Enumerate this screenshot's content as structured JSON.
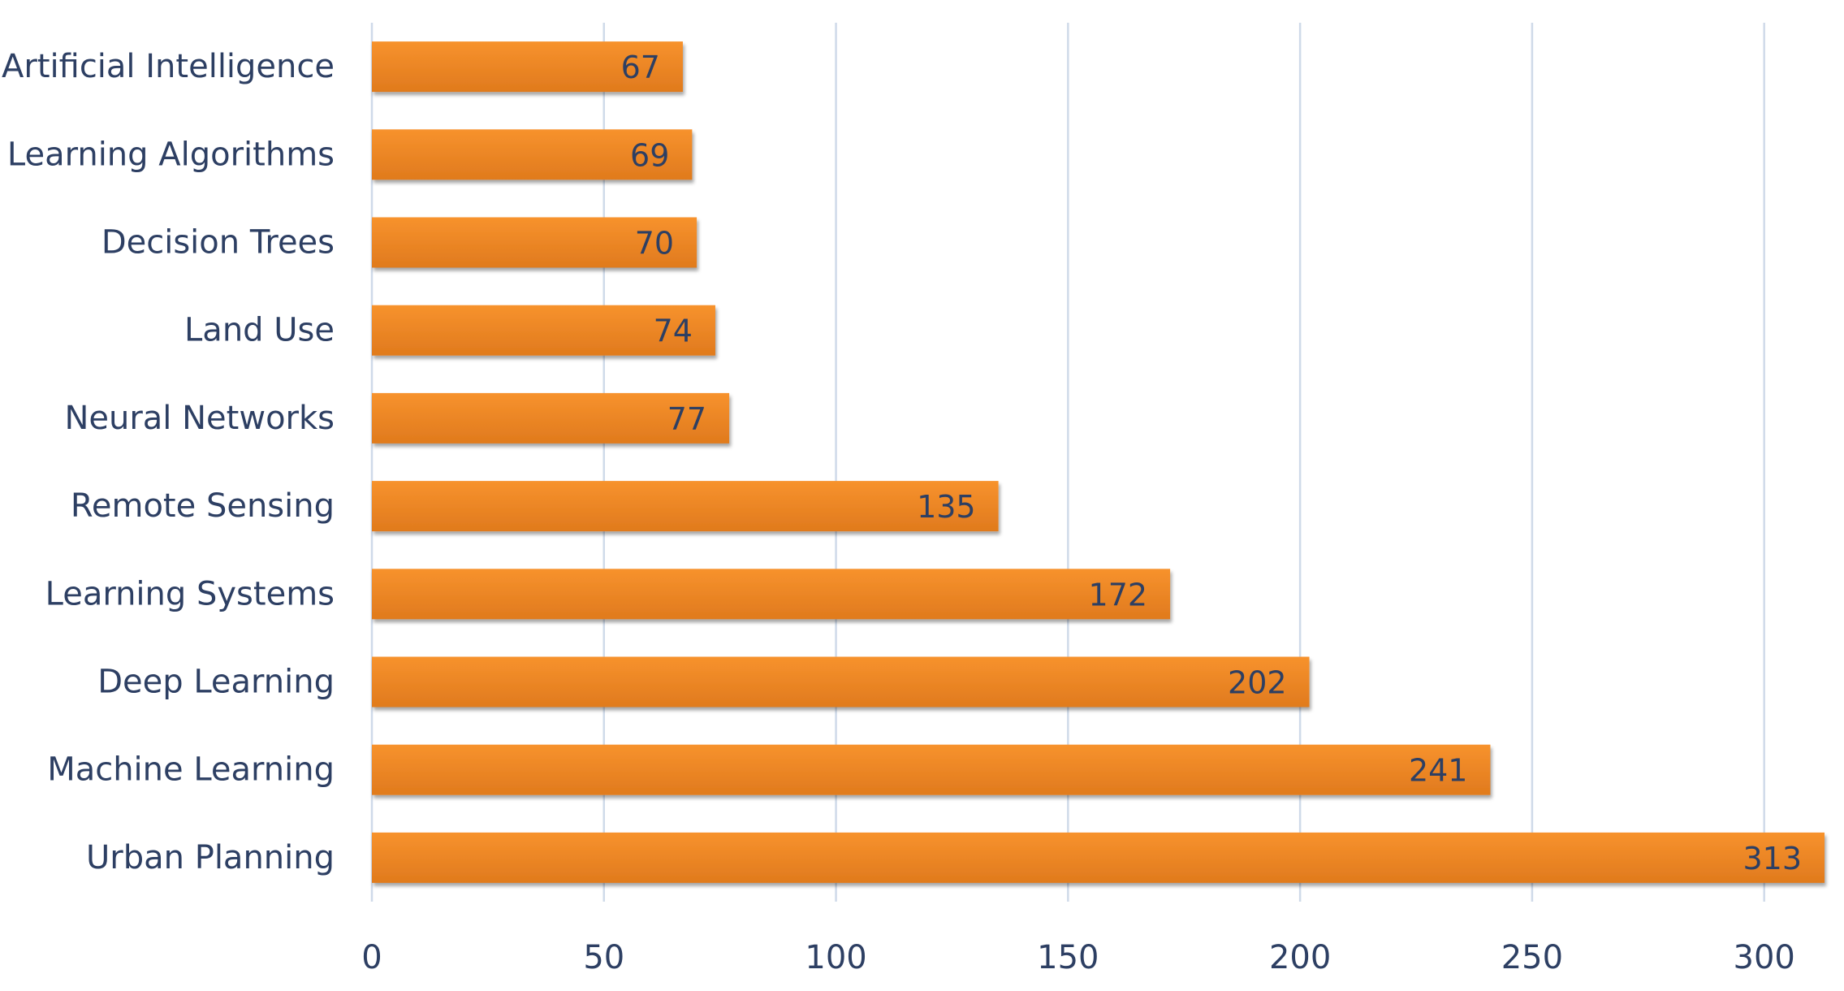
{
  "chart_data": {
    "type": "bar",
    "orientation": "horizontal",
    "categories": [
      "Artificial Intelligence",
      "Learning Algorithms",
      "Decision Trees",
      "Land Use",
      "Neural Networks",
      "Remote Sensing",
      "Learning Systems",
      "Deep Learning",
      "Machine Learning",
      "Urban Planning"
    ],
    "values": [
      67,
      69,
      70,
      74,
      77,
      135,
      172,
      202,
      241,
      313
    ],
    "data_labels": [
      "67",
      "69",
      "70",
      "74",
      "77",
      "135",
      "172",
      "202",
      "241",
      "313"
    ],
    "x_ticks": [
      "0",
      "50",
      "100",
      "150",
      "200",
      "250",
      "300"
    ],
    "xlim": [
      0,
      313
    ],
    "grid": "vertical",
    "legend": "none",
    "title": "",
    "xlabel": "",
    "ylabel": "",
    "colors": {
      "bar_fill_top": "#f7922d",
      "bar_fill_bottom": "#e07a1d",
      "bar_shadow": "#9f9f9f",
      "text": "#2d3f63",
      "grid": "#cfdae9"
    }
  }
}
